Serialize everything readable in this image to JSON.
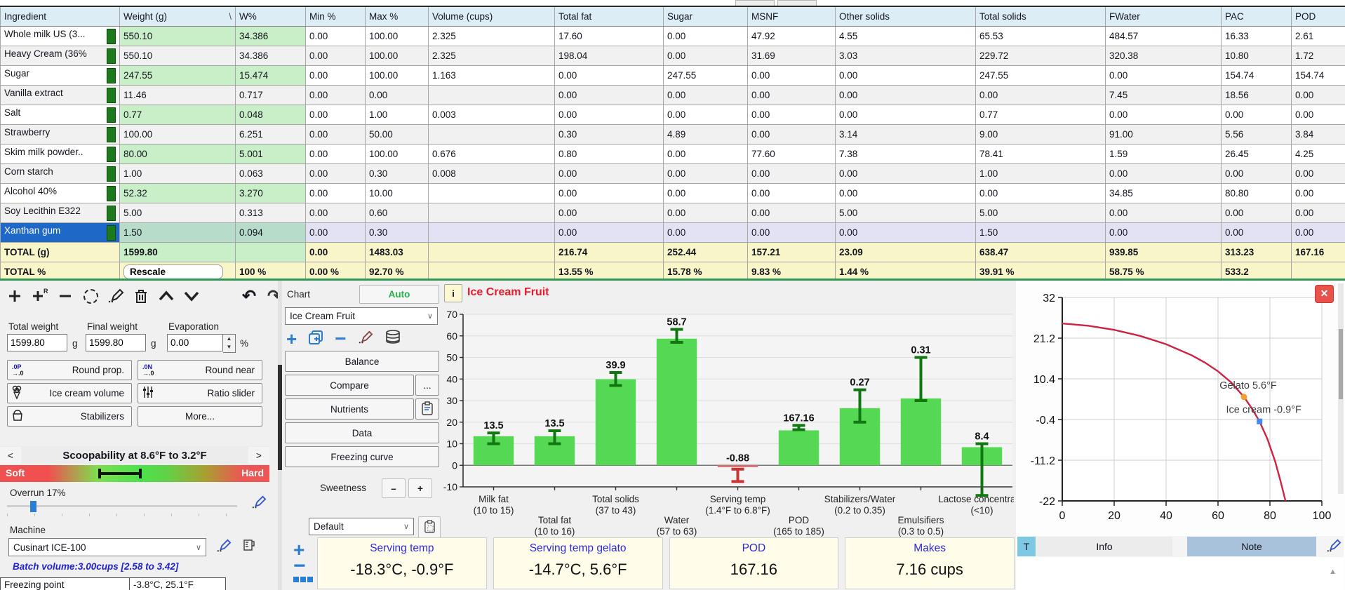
{
  "colors": {
    "accent_green": "#2f9655",
    "cell_green": "#c8efc8",
    "selected_blue": "#1e68c8",
    "selected_lavender": "#e2e2f4",
    "total_yellow": "#f8f6c9",
    "bar_green": "#55d955",
    "bar_err_green": "#117711",
    "bar_red": "#e07070",
    "title_red": "#e8192c",
    "card_header_blue": "#2a2ae0",
    "curve_red": "#cc2344",
    "marker_orange": "#f0a030",
    "marker_blue": "#4488ee",
    "soft_hard_text": "#ffffff"
  },
  "table": {
    "header": [
      "Ingredient",
      "Weight (g)",
      "W%",
      "Min %",
      "Max %",
      "Volume (cups)",
      "Total fat",
      "Sugar",
      "MSNF",
      "Other solids",
      "Total solids",
      "FWater",
      "PAC",
      "POD"
    ],
    "weight_sort_glyph": "\\",
    "rows": [
      {
        "name": "Whole milk US (3...",
        "v": [
          "550.10",
          "34.386",
          "0.00",
          "100.00",
          "2.325",
          "17.60",
          "0.00",
          "47.92",
          "4.55",
          "65.53",
          "484.57",
          "16.33",
          "2.61"
        ]
      },
      {
        "name": "Heavy Cream (36%",
        "v": [
          "550.10",
          "34.386",
          "0.00",
          "100.00",
          "2.325",
          "198.04",
          "0.00",
          "31.69",
          "3.03",
          "229.72",
          "320.38",
          "10.80",
          "1.72"
        ]
      },
      {
        "name": "Sugar",
        "v": [
          "247.55",
          "15.474",
          "0.00",
          "100.00",
          "1.163",
          "0.00",
          "247.55",
          "0.00",
          "0.00",
          "247.55",
          "0.00",
          "154.74",
          "154.74"
        ]
      },
      {
        "name": "Vanilla extract",
        "v": [
          "11.46",
          "0.717",
          "0.00",
          "0.00",
          "",
          "0.00",
          "0.00",
          "0.00",
          "0.00",
          "0.00",
          "7.45",
          "18.56",
          "0.00"
        ]
      },
      {
        "name": "Salt",
        "v": [
          "0.77",
          "0.048",
          "0.00",
          "1.00",
          "0.003",
          "0.00",
          "0.00",
          "0.00",
          "0.00",
          "0.77",
          "0.00",
          "0.00",
          "0.00"
        ]
      },
      {
        "name": "Strawberry",
        "v": [
          "100.00",
          "6.251",
          "0.00",
          "50.00",
          "",
          "0.30",
          "4.89",
          "0.00",
          "3.14",
          "9.00",
          "91.00",
          "5.56",
          "3.84"
        ]
      },
      {
        "name": "Skim milk powder..",
        "v": [
          "80.00",
          "5.001",
          "0.00",
          "100.00",
          "0.676",
          "0.80",
          "0.00",
          "77.60",
          "7.38",
          "78.41",
          "1.59",
          "26.45",
          "4.25"
        ]
      },
      {
        "name": "Corn starch",
        "v": [
          "1.00",
          "0.063",
          "0.00",
          "0.30",
          "0.008",
          "0.00",
          "0.00",
          "0.00",
          "0.00",
          "1.00",
          "0.00",
          "0.00",
          "0.00"
        ]
      },
      {
        "name": "Alcohol 40%",
        "v": [
          "52.32",
          "3.270",
          "0.00",
          "10.00",
          "",
          "0.00",
          "0.00",
          "0.00",
          "0.00",
          "0.00",
          "34.85",
          "80.80",
          "0.00"
        ]
      },
      {
        "name": "Soy Lecithin E322",
        "v": [
          "5.00",
          "0.313",
          "0.00",
          "0.60",
          "",
          "0.00",
          "0.00",
          "0.00",
          "5.00",
          "5.00",
          "0.00",
          "0.00",
          "0.00"
        ]
      },
      {
        "name": "Xanthan gum",
        "selected": true,
        "v": [
          "1.50",
          "0.094",
          "0.00",
          "0.30",
          "",
          "0.00",
          "0.00",
          "0.00",
          "0.00",
          "1.50",
          "0.00",
          "0.00",
          "0.00"
        ]
      }
    ],
    "total_g": {
      "label": "TOTAL (g)",
      "v": [
        "1599.80",
        "",
        "0.00",
        "1483.03",
        "",
        "216.74",
        "252.44",
        "157.21",
        "23.09",
        "638.47",
        "939.85",
        "313.23",
        "167.16"
      ]
    },
    "total_pct": {
      "label": "TOTAL %",
      "rescale_label": "Rescale",
      "v": [
        "100 %",
        "0.00 %",
        "92.70 %",
        "",
        "13.55 %",
        "15.78 %",
        "9.83 %",
        "1.44 %",
        "39.91 %",
        "58.75 %",
        "533.2",
        ""
      ]
    }
  },
  "left_panel": {
    "total_weight_label": "Total weight",
    "total_weight": "1599.80",
    "unit_g": "g",
    "final_weight_label": "Final weight",
    "final_weight": "1599.80",
    "evaporation_label": "Evaporation",
    "evaporation": "0.00",
    "unit_pct": "%",
    "round_prop": "Round prop.",
    "round_near": "Round near",
    "ice_cream_volume": "Ice cream volume",
    "ratio_slider": "Ratio slider",
    "stabilizers": "Stabilizers",
    "more": "More...",
    "round_prop_glyph": ".0P",
    "round_near_glyph": ".0N",
    "round_glyph2": "→.0",
    "scoopability_title": "Scoopability at 8.6°F to 3.2°F",
    "soft": "Soft",
    "hard": "Hard",
    "prev_arrow": "<",
    "next_arrow": ">",
    "overrun_label": "Overrun 17%",
    "machine_label": "Machine",
    "machine_value": "Cusinart ICE-100",
    "batch_volume": "Batch volume:3.00cups  [2.58 to 3.42]",
    "freezing_point_label": "Freezing point",
    "freezing_point_value": "-3.8°C, 25.1°F"
  },
  "chart_panel": {
    "label": "Chart",
    "auto": "Auto",
    "preset": "Ice Cream Fruit",
    "balance": "Balance",
    "compare": "Compare",
    "compare_more": "...",
    "nutrients": "Nutrients",
    "data": "Data",
    "freezing_curve": "Freezing curve",
    "sweetness_label": "Sweetness",
    "minus": "–",
    "plus": "+",
    "style_preset": "Default",
    "info_button": "i"
  },
  "chart_data": [
    {
      "type": "bar",
      "title": "Ice Cream Fruit",
      "ylim": [
        -10,
        70
      ],
      "ytick_step": 10,
      "grid": true,
      "bars": [
        {
          "category": "Milk fat",
          "range": "(10 to 15)",
          "value_label": "13.5",
          "plot": 13.5,
          "err": [
            10,
            15
          ],
          "color": "green"
        },
        {
          "category": "Total fat",
          "range": "(10 to 16)",
          "value_label": "13.5",
          "plot": 13.5,
          "err": [
            10,
            16
          ],
          "color": "green"
        },
        {
          "category": "Total solids",
          "range": "(37 to 43)",
          "value_label": "39.9",
          "plot": 39.9,
          "err": [
            37,
            43
          ],
          "color": "green"
        },
        {
          "category": "Water",
          "range": "(57 to 63)",
          "value_label": "58.7",
          "plot": 58.7,
          "err": [
            57,
            63
          ],
          "color": "green"
        },
        {
          "category": "Serving temp",
          "range": "(1.4°F to 6.8°F)",
          "value_label": "-0.88",
          "plot": -0.88,
          "err": [
            -7.5,
            -1.8
          ],
          "color": "red"
        },
        {
          "category": "POD",
          "range": "(165 to 185)",
          "value_label": "167.16",
          "plot": 16.2,
          "err": [
            16.5,
            18.5
          ],
          "color": "green"
        },
        {
          "category": "Stabilizers/Water",
          "range": "(0.2 to 0.35)",
          "value_label": "0.27",
          "plot": 26.5,
          "err": [
            20,
            35
          ],
          "color": "green"
        },
        {
          "category": "Emulsifiers",
          "range": "(0.3 to 0.5)",
          "value_label": "0.31",
          "plot": 31,
          "err": [
            30,
            50
          ],
          "color": "green"
        },
        {
          "category": "Lactose concentratio",
          "range": "(<10)",
          "value_label": "8.4",
          "plot": 8.4,
          "err": [
            -14,
            10
          ],
          "color": "green"
        }
      ]
    },
    {
      "type": "line",
      "title": "Freezing curve",
      "yticks": [
        32,
        21.2,
        10.4,
        -0.4,
        -11.2,
        -22
      ],
      "xticks": [
        0,
        20,
        40,
        60,
        80,
        100
      ],
      "ylim": [
        -22,
        32
      ],
      "xlim": [
        0,
        100
      ],
      "grid": true,
      "points": [
        [
          0,
          25.1
        ],
        [
          10,
          24.5
        ],
        [
          20,
          23.4
        ],
        [
          30,
          21.8
        ],
        [
          40,
          19.6
        ],
        [
          50,
          16.6
        ],
        [
          55,
          14.7
        ],
        [
          60,
          12.4
        ],
        [
          65,
          9.5
        ],
        [
          70,
          5.6
        ],
        [
          73,
          2.6
        ],
        [
          76,
          -0.9
        ],
        [
          79,
          -5.5
        ],
        [
          82,
          -11.5
        ],
        [
          84,
          -16.5
        ],
        [
          86,
          -22
        ]
      ],
      "markers": [
        {
          "label": "Gelato 5.6°F",
          "x": 70,
          "y": 5.6,
          "color": "#f0a030",
          "shape": "circle"
        },
        {
          "label": "Ice cream -0.9°F",
          "x": 76,
          "y": -0.9,
          "color": "#4488ee",
          "shape": "square"
        }
      ]
    }
  ],
  "summary_cards": [
    {
      "title": "Serving temp",
      "value": "-18.3°C, -0.9°F"
    },
    {
      "title": "Serving temp gelato",
      "value": "-14.7°C, 5.6°F"
    },
    {
      "title": "POD",
      "value": "167.16"
    },
    {
      "title": "Makes",
      "value": "7.16 cups"
    }
  ],
  "right_panel": {
    "tab_t": "T",
    "tab_info": "Info",
    "tab_note": "Note"
  }
}
